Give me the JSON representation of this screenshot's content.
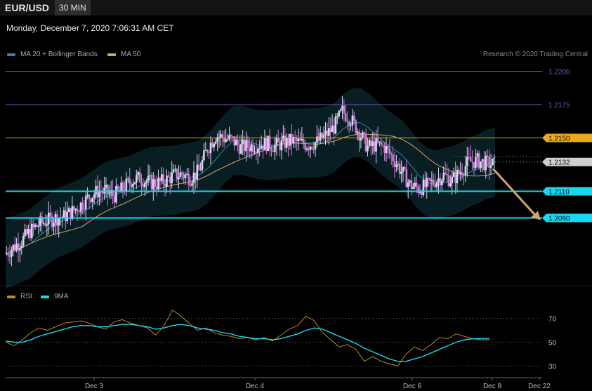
{
  "header": {
    "symbol": "EUR/USD",
    "timeframe": "30 MIN",
    "datetime": "Monday, December 7, 2020 7:06:31 AM CET",
    "credit": "Research © 2020 Trading Central"
  },
  "colors": {
    "bollinger": "#2a8a9a",
    "ma50": "#d2a56e",
    "support": "#16d8f0",
    "resistance_1": "#e9a91a",
    "resistance_2": "#6b56b8",
    "resistance_3": "#7f52b8",
    "current": "#cfcfcf",
    "rsi": "#b8892a",
    "rsi_ma": "#16d8f0",
    "candle_up": "#d8d8ee",
    "candle_down": "#d07ad8"
  },
  "chart_data": [
    {
      "type": "candlestick",
      "legend": [
        {
          "name": "MA 20 + Bollinger Bands",
          "color": "#2a8a9a"
        },
        {
          "name": "MA 50",
          "color": "#d2a56e"
        }
      ],
      "x_labels": [
        "Dec 3",
        "Dec 4",
        "Dec 6",
        "Dec 8",
        "Dec 22"
      ],
      "ylim": [
        1.2045,
        1.2205
      ],
      "levels": [
        {
          "label": "1.2200",
          "value": 1.22,
          "kind": "resistance_3"
        },
        {
          "label": "1.2175",
          "value": 1.2175,
          "kind": "resistance_2"
        },
        {
          "label": "1.2150",
          "value": 1.215,
          "kind": "resistance_1"
        },
        {
          "label": "1.2132",
          "value": 1.2132,
          "kind": "current"
        },
        {
          "label": "1.2110",
          "value": 1.211,
          "kind": "support"
        },
        {
          "label": "1.2090",
          "value": 1.209,
          "kind": "support"
        }
      ],
      "forecast": {
        "from": 1.2127,
        "to": 1.209,
        "color": "#d2a56e"
      },
      "price_path": [
        1.2063,
        1.2068,
        1.2073,
        1.208,
        1.2085,
        1.2088,
        1.209,
        1.2091,
        1.2095,
        1.21,
        1.2106,
        1.211,
        1.2109,
        1.2107,
        1.2112,
        1.2118,
        1.212,
        1.2117,
        1.2116,
        1.2118,
        1.2122,
        1.2123,
        1.212,
        1.2125,
        1.2142,
        1.2152,
        1.215,
        1.2148,
        1.2143,
        1.2144,
        1.2145,
        1.2146,
        1.2144,
        1.2146,
        1.2148,
        1.2146,
        1.2145,
        1.2147,
        1.2152,
        1.2158,
        1.217,
        1.2164,
        1.2154,
        1.2143,
        1.2145,
        1.2143,
        1.2135,
        1.2125,
        1.2115,
        1.2112,
        1.2114,
        1.2118,
        1.2122,
        1.2118,
        1.2125,
        1.2132,
        1.2133,
        1.2131,
        1.213
      ]
    },
    {
      "type": "line",
      "legend": [
        {
          "name": "RSI",
          "color": "#b8892a"
        },
        {
          "name": "9MA",
          "color": "#16d8f0"
        }
      ],
      "ylim": [
        25,
        78
      ],
      "levels": [
        70,
        50,
        30
      ],
      "series": [
        {
          "name": "RSI",
          "values": [
            50,
            47,
            52,
            58,
            62,
            60,
            63,
            66,
            67,
            68,
            66,
            63,
            61,
            67,
            69,
            66,
            64,
            62,
            56,
            64,
            77,
            72,
            66,
            60,
            62,
            58,
            56,
            55,
            53,
            54,
            52,
            54,
            51,
            56,
            61,
            64,
            72,
            68,
            58,
            52,
            46,
            48,
            44,
            34,
            38,
            34,
            32,
            30,
            40,
            46,
            43,
            48,
            54,
            53,
            57,
            55,
            53,
            52,
            52
          ]
        },
        {
          "name": "9MA",
          "values": [
            51,
            50,
            50,
            52,
            55,
            57,
            59,
            61,
            63,
            64,
            64,
            63,
            63,
            64,
            65,
            65,
            64,
            63,
            61,
            62,
            64,
            65,
            64,
            62,
            61,
            60,
            58,
            57,
            55,
            54,
            53,
            53,
            52,
            53,
            55,
            57,
            60,
            62,
            61,
            58,
            55,
            52,
            49,
            45,
            42,
            39,
            36,
            34,
            34,
            36,
            38,
            41,
            44,
            47,
            50,
            52,
            53,
            53,
            53
          ]
        }
      ]
    }
  ]
}
